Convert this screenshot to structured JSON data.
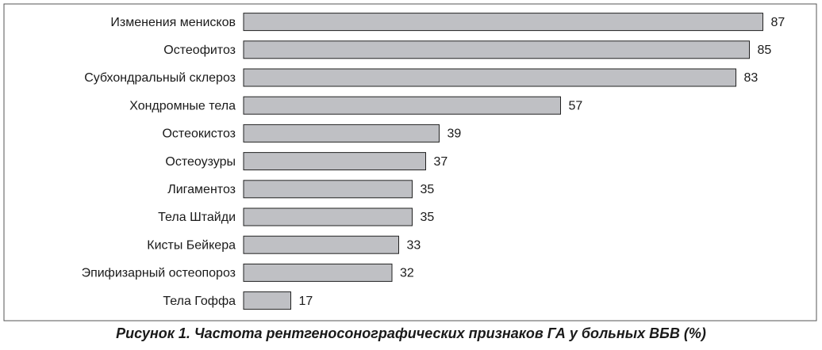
{
  "chart_data": {
    "type": "bar",
    "orientation": "horizontal",
    "title": "Рисунок 1. Частота рентгеносонографических признаков ГА у больных ВБВ (%)",
    "categories": [
      "Изменения менисков",
      "Остеофитоз",
      "Субхондральный склероз",
      "Хондромные тела",
      "Остеокистоз",
      "Остеоузуры",
      "Лигаментоз",
      "Тела Штайди",
      "Кисты Бейкера",
      "Эпифизарный остеопороз",
      "Тела Гоффа"
    ],
    "values": [
      87,
      85,
      83,
      57,
      39,
      37,
      35,
      35,
      33,
      32,
      17
    ],
    "color": "#bfc0c4",
    "xlim": [
      10,
      90
    ]
  }
}
